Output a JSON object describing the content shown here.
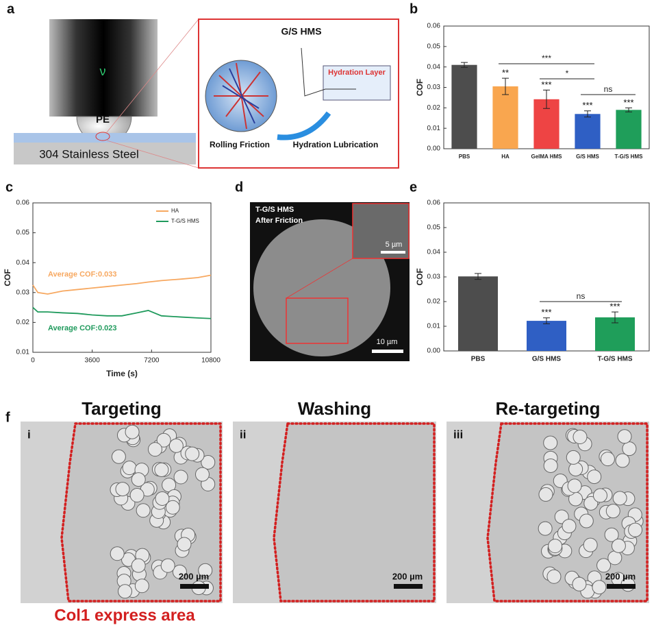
{
  "panel_labels": [
    "a",
    "b",
    "c",
    "d",
    "e",
    "f"
  ],
  "schematic": {
    "probe": "PE",
    "substrate": "304 Stainless Steel",
    "title": "G/S HMS",
    "hydration_layer": "Hydration Layer",
    "left_caption": "Rolling Friction",
    "right_caption": "Hydration Lubrication"
  },
  "chart_data": [
    {
      "type": "bar",
      "ylabel": "COF",
      "categories": [
        "PBS",
        "HA",
        "GelMA HMS",
        "G/S HMS",
        "T-G/S HMS"
      ],
      "values": [
        0.041,
        0.0305,
        0.0242,
        0.017,
        0.019
      ],
      "errors": [
        0.0012,
        0.004,
        0.0045,
        0.0015,
        0.001
      ],
      "colors": [
        "#4d4d4d",
        "#f9a64f",
        "#ee4444",
        "#2f5fc4",
        "#1f9e5a"
      ],
      "bar_labels": [
        null,
        "**",
        "***",
        "***",
        "***"
      ],
      "comparison_labels": [
        "***",
        "*",
        "ns"
      ],
      "ylim": [
        0,
        0.06
      ],
      "yticks": [
        {
          "value": 0,
          "label": "0.00"
        },
        0.01,
        0.02,
        0.03,
        0.04,
        0.05,
        0.06
      ]
    },
    {
      "type": "line",
      "xlabel": "Time (s)",
      "ylabel": "COF",
      "x": [
        0,
        300,
        900,
        1800,
        2700,
        3600,
        4500,
        5400,
        6300,
        7000,
        7800,
        9000,
        10000,
        10800
      ],
      "series": [
        {
          "name": "HA",
          "color": "#f7a860",
          "values": [
            0.0325,
            0.03,
            0.0295,
            0.0305,
            0.031,
            0.0315,
            0.032,
            0.0325,
            0.033,
            0.0335,
            0.034,
            0.0345,
            0.035,
            0.0358
          ]
        },
        {
          "name": "T-G/S HMS",
          "color": "#1f9a5c",
          "values": [
            0.025,
            0.0235,
            0.0235,
            0.0232,
            0.023,
            0.0225,
            0.0222,
            0.0222,
            0.0232,
            0.024,
            0.0222,
            0.0218,
            0.0215,
            0.0213
          ]
        }
      ],
      "annotations": [
        "Average COF:0.033",
        "Average COF:0.023"
      ],
      "legend": "upper right",
      "xlim": [
        0,
        10800
      ],
      "xticks": [
        0,
        3600,
        7200,
        10800
      ],
      "ylim": [
        0.01,
        0.06
      ],
      "yticks": [
        0.01,
        0.02,
        0.03,
        0.04,
        0.05,
        0.06
      ]
    },
    {
      "type": "bar",
      "ylabel": "COF",
      "categories": [
        "PBS",
        "G/S HMS",
        "T-G/S HMS"
      ],
      "values": [
        0.0302,
        0.0122,
        0.0136
      ],
      "errors": [
        0.0012,
        0.0012,
        0.0022
      ],
      "colors": [
        "#4d4d4d",
        "#2f5fc4",
        "#1f9e5a"
      ],
      "bar_labels": [
        null,
        "***",
        "***"
      ],
      "comparison_labels": [
        "ns"
      ],
      "ylim": [
        0,
        0.06
      ],
      "yticks": [
        {
          "value": 0,
          "label": "0.00"
        },
        0.01,
        0.02,
        0.03,
        0.04,
        0.05,
        0.06
      ]
    }
  ],
  "sem": {
    "title_lines": [
      "T-G/S HMS",
      "After Friction"
    ],
    "inset_scale": "5 µm",
    "scale": "10 µm"
  },
  "microscopy": {
    "panels": [
      {
        "title": "Targeting",
        "numeral": "i",
        "scale": "200 µm"
      },
      {
        "title": "Washing",
        "numeral": "ii",
        "scale": "200 µm"
      },
      {
        "title": "Re-targeting",
        "numeral": "iii",
        "scale": "200 µm"
      }
    ],
    "caption": "Col1 express area"
  }
}
